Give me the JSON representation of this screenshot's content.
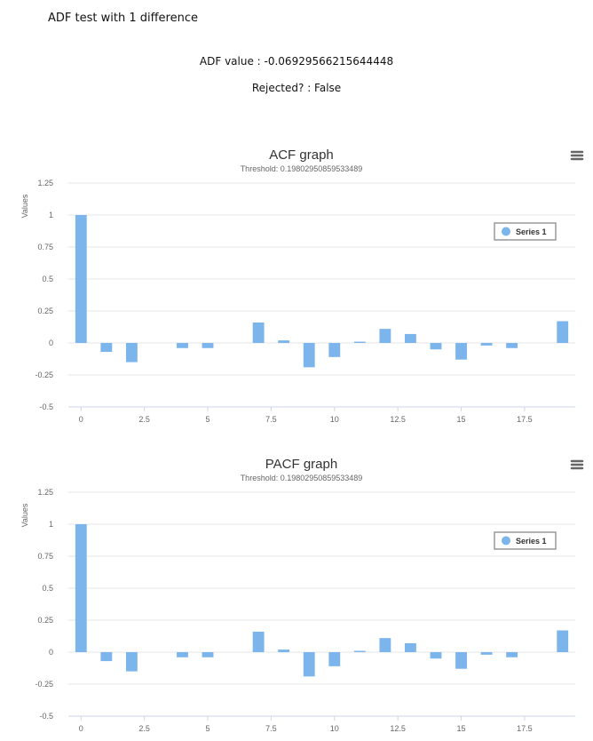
{
  "page": {
    "title": "ADF test with 1 difference",
    "adf_value_text": "ADF value : -0.06929566215644448",
    "rejected_text": "Rejected? : False"
  },
  "colors": {
    "bar": "#7cb5ec",
    "grid": "#e6e6e6",
    "axis": "#ccd6eb",
    "legend_border": "#999999"
  },
  "chart_data": [
    {
      "id": "acf",
      "type": "bar",
      "title": "ACF graph",
      "subtitle": "Threshold: 0.19802950859533489",
      "ylabel": "Values",
      "xlabel": "",
      "ylim": [
        -0.5,
        1.25
      ],
      "xlim": [
        -0.5,
        19.5
      ],
      "yticks": [
        -0.5,
        -0.25,
        0,
        0.25,
        0.5,
        0.75,
        1,
        1.25
      ],
      "ytick_labels": [
        "-0.5",
        "-0.25",
        "0",
        "0.25",
        "0.5",
        "0.75",
        "1",
        "1.25"
      ],
      "xticks": [
        0,
        2.5,
        5,
        7.5,
        10,
        12.5,
        15,
        17.5
      ],
      "xtick_labels": [
        "0",
        "2.5",
        "5",
        "7.5",
        "10",
        "12.5",
        "15",
        "17.5"
      ],
      "legend": "Series 1",
      "legend_position": "top-right",
      "menu_icon": "hamburger-menu-icon",
      "series": [
        {
          "name": "Series 1",
          "x": [
            0,
            1,
            2,
            3,
            4,
            5,
            6,
            7,
            8,
            9,
            10,
            11,
            12,
            13,
            14,
            15,
            16,
            17,
            18,
            19
          ],
          "values": [
            1.0,
            -0.07,
            -0.15,
            0.0,
            -0.04,
            -0.04,
            0.0,
            0.16,
            0.02,
            -0.19,
            -0.11,
            0.01,
            0.11,
            0.07,
            -0.05,
            -0.13,
            -0.02,
            -0.04,
            0.0,
            0.17
          ]
        }
      ]
    },
    {
      "id": "pacf",
      "type": "bar",
      "title": "PACF graph",
      "subtitle": "Threshold: 0.19802950859533489",
      "ylabel": "Values",
      "xlabel": "",
      "ylim": [
        -0.5,
        1.25
      ],
      "xlim": [
        -0.5,
        19.5
      ],
      "yticks": [
        -0.5,
        -0.25,
        0,
        0.25,
        0.5,
        0.75,
        1,
        1.25
      ],
      "ytick_labels": [
        "-0.5",
        "-0.25",
        "0",
        "0.25",
        "0.5",
        "0.75",
        "1",
        "1.25"
      ],
      "xticks": [
        0,
        2.5,
        5,
        7.5,
        10,
        12.5,
        15,
        17.5
      ],
      "xtick_labels": [
        "0",
        "2.5",
        "5",
        "7.5",
        "10",
        "12.5",
        "15",
        "17.5"
      ],
      "legend": "Series 1",
      "legend_position": "top-right",
      "menu_icon": "hamburger-menu-icon",
      "series": [
        {
          "name": "Series 1",
          "x": [
            0,
            1,
            2,
            3,
            4,
            5,
            6,
            7,
            8,
            9,
            10,
            11,
            12,
            13,
            14,
            15,
            16,
            17,
            18,
            19
          ],
          "values": [
            1.0,
            -0.07,
            -0.15,
            0.0,
            -0.04,
            -0.04,
            0.0,
            0.16,
            0.02,
            -0.19,
            -0.11,
            0.01,
            0.11,
            0.07,
            -0.05,
            -0.13,
            -0.02,
            -0.04,
            0.0,
            0.17
          ]
        }
      ]
    }
  ]
}
